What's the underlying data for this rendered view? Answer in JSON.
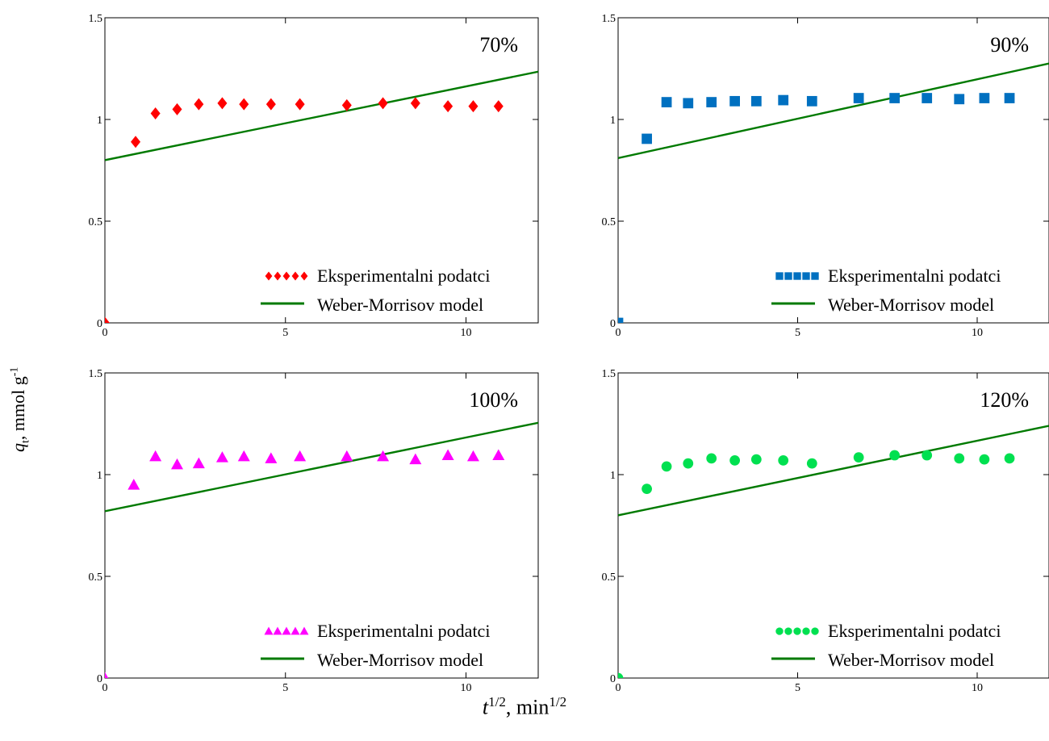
{
  "figure": {
    "ylabel_var": "q",
    "ylabel_sub": "t",
    "ylabel_text": ", mmol g",
    "ylabel_sup": "-1",
    "xlabel_var": "t",
    "xlabel_sup1": "1/2",
    "xlabel_text": ", min",
    "xlabel_sup2": "1/2"
  },
  "chart_data": [
    {
      "type": "scatter",
      "title": "70%",
      "xlim": [
        0,
        12
      ],
      "ylim": [
        0,
        1.5
      ],
      "xticks": [
        "0",
        "5",
        "10"
      ],
      "yticks": [
        "0",
        "0.5",
        "1",
        "1.5"
      ],
      "legend_position": "bottom-right",
      "series": [
        {
          "name": "Eksperimentalni podatci",
          "marker": "diamond",
          "color": "#ff0000",
          "x": [
            0,
            0.85,
            1.4,
            2.0,
            2.6,
            3.25,
            3.85,
            4.6,
            5.4,
            6.7,
            7.7,
            8.6,
            9.5,
            10.2,
            10.9
          ],
          "y": [
            0,
            0.89,
            1.03,
            1.05,
            1.075,
            1.08,
            1.075,
            1.075,
            1.075,
            1.07,
            1.08,
            1.08,
            1.065,
            1.065,
            1.065
          ]
        },
        {
          "name": "Weber-Morrisov model",
          "line": true,
          "color": "#007a00",
          "x": [
            0,
            12
          ],
          "y": [
            0.8,
            1.235
          ]
        }
      ]
    },
    {
      "type": "scatter",
      "title": "90%",
      "xlim": [
        0,
        12
      ],
      "ylim": [
        0,
        1.5
      ],
      "xticks": [
        "0",
        "5",
        "10"
      ],
      "yticks": [
        "0",
        "0.5",
        "1",
        "1.5"
      ],
      "legend_position": "bottom-right",
      "series": [
        {
          "name": "Eksperimentalni podatci",
          "marker": "square",
          "color": "#0070c0",
          "x": [
            0,
            0.8,
            1.35,
            1.95,
            2.6,
            3.25,
            3.85,
            4.6,
            5.4,
            6.7,
            7.7,
            8.6,
            9.5,
            10.2,
            10.9
          ],
          "y": [
            0,
            0.905,
            1.085,
            1.08,
            1.085,
            1.09,
            1.09,
            1.095,
            1.09,
            1.105,
            1.105,
            1.105,
            1.1,
            1.105,
            1.105
          ]
        },
        {
          "name": "Weber-Morrisov model",
          "line": true,
          "color": "#007a00",
          "x": [
            0,
            12
          ],
          "y": [
            0.81,
            1.275
          ]
        }
      ]
    },
    {
      "type": "scatter",
      "title": "100%",
      "xlim": [
        0,
        12
      ],
      "ylim": [
        0,
        1.5
      ],
      "xticks": [
        "0",
        "5",
        "10"
      ],
      "yticks": [
        "0",
        "0.5",
        "1",
        "1.5"
      ],
      "legend_position": "bottom-right",
      "series": [
        {
          "name": "Eksperimentalni podatci",
          "marker": "triangle",
          "color": "#ff00ff",
          "x": [
            0,
            0.8,
            1.4,
            2.0,
            2.6,
            3.25,
            3.85,
            4.6,
            5.4,
            6.7,
            7.7,
            8.6,
            9.5,
            10.2,
            10.9
          ],
          "y": [
            0,
            0.95,
            1.09,
            1.05,
            1.055,
            1.085,
            1.09,
            1.08,
            1.09,
            1.09,
            1.09,
            1.075,
            1.095,
            1.09,
            1.095
          ]
        },
        {
          "name": "Weber-Morrisov model",
          "line": true,
          "color": "#007a00",
          "x": [
            0,
            12
          ],
          "y": [
            0.82,
            1.255
          ]
        }
      ]
    },
    {
      "type": "scatter",
      "title": "120%",
      "xlim": [
        0,
        12
      ],
      "ylim": [
        0,
        1.5
      ],
      "xticks": [
        "0",
        "5",
        "10"
      ],
      "yticks": [
        "0",
        "0.5",
        "1",
        "1.5"
      ],
      "legend_position": "bottom-right",
      "series": [
        {
          "name": "Eksperimentalni podatci",
          "marker": "circle",
          "color": "#00e050",
          "x": [
            0,
            0.8,
            1.35,
            1.95,
            2.6,
            3.25,
            3.85,
            4.6,
            5.4,
            6.7,
            7.7,
            8.6,
            9.5,
            10.2,
            10.9
          ],
          "y": [
            0,
            0.93,
            1.04,
            1.055,
            1.08,
            1.07,
            1.075,
            1.07,
            1.055,
            1.085,
            1.095,
            1.095,
            1.08,
            1.075,
            1.08
          ]
        },
        {
          "name": "Weber-Morrisov model",
          "line": true,
          "color": "#007a00",
          "x": [
            0,
            12
          ],
          "y": [
            0.8,
            1.24
          ]
        }
      ]
    }
  ]
}
